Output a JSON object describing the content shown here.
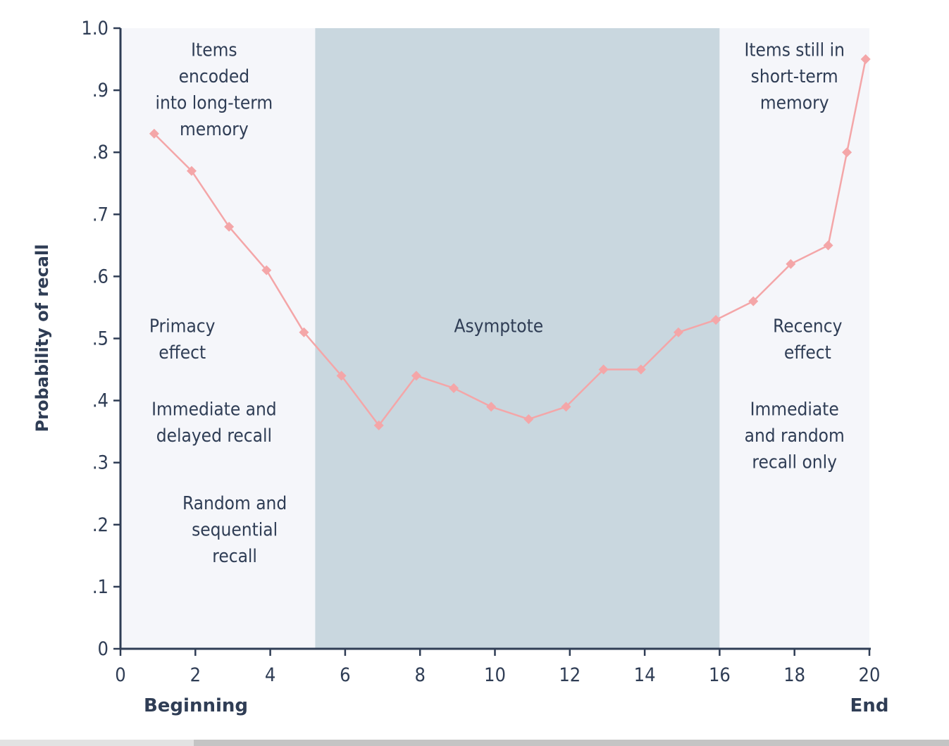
{
  "chart_data": {
    "type": "line",
    "ylabel": "Probability of recall",
    "xlabel_left": "Beginning",
    "xlabel_right": "End",
    "xlim": [
      0,
      20
    ],
    "ylim": [
      0,
      1.0
    ],
    "x_ticks": [
      0,
      2,
      4,
      6,
      8,
      10,
      12,
      14,
      16,
      18,
      20
    ],
    "x_tick_labels": [
      "0",
      "2",
      "4",
      "6",
      "8",
      "10",
      "12",
      "14",
      "16",
      "18",
      "20"
    ],
    "y_ticks": [
      0,
      0.1,
      0.2,
      0.3,
      0.4,
      0.5,
      0.6,
      0.7,
      0.8,
      0.9,
      1.0
    ],
    "y_tick_labels": [
      "0",
      ".1",
      ".2",
      ".3",
      ".4",
      ".5",
      ".6",
      ".7",
      ".8",
      ".9",
      "1.0"
    ],
    "series": [
      {
        "x": [
          0.9,
          1.9,
          2.9,
          3.9,
          4.9,
          5.9,
          6.9,
          7.9,
          8.9,
          9.9,
          10.9,
          11.9,
          12.9,
          13.9,
          14.9,
          15.9,
          16.9,
          17.9,
          18.9,
          19.4,
          19.9
        ],
        "values": [
          0.83,
          0.77,
          0.68,
          0.61,
          0.51,
          0.44,
          0.36,
          0.44,
          0.42,
          0.39,
          0.37,
          0.39,
          0.45,
          0.45,
          0.51,
          0.53,
          0.56,
          0.62,
          0.65,
          0.8,
          0.95
        ],
        "color": "#f4a6a8"
      }
    ],
    "regions": [
      {
        "x_start": 0,
        "x_end": 5.2,
        "color": "#f5f6fa"
      },
      {
        "x_start": 5.2,
        "x_end": 16,
        "color": "#c9d7df"
      },
      {
        "x_start": 16,
        "x_end": 20,
        "color": "#f5f6fa"
      }
    ],
    "annotations": [
      {
        "lines": [
          "Items",
          "encoded",
          "into long-term",
          "memory"
        ],
        "x": 2.5,
        "y": 0.955
      },
      {
        "lines": [
          "Primacy",
          "effect"
        ],
        "x": 1.65,
        "y": 0.51
      },
      {
        "lines": [
          "Immediate and",
          "delayed recall"
        ],
        "x": 2.5,
        "y": 0.376
      },
      {
        "lines": [
          "Random and",
          "sequential",
          "recall"
        ],
        "x": 3.05,
        "y": 0.225
      },
      {
        "lines": [
          "Asymptote"
        ],
        "x": 10.1,
        "y": 0.51
      },
      {
        "lines": [
          "Items still in",
          "short-term",
          "memory"
        ],
        "x": 18.0,
        "y": 0.955
      },
      {
        "lines": [
          "Recency",
          "effect"
        ],
        "x": 18.35,
        "y": 0.51
      },
      {
        "lines": [
          "Immediate",
          "and random",
          "recall only"
        ],
        "x": 18.0,
        "y": 0.376
      }
    ],
    "grid": false
  },
  "colors": {
    "axis": "#2f3d55",
    "text": "#2f3d55",
    "line": "#f4a6a8",
    "band_light": "#f5f6fa",
    "band_dark": "#c9d7df"
  }
}
